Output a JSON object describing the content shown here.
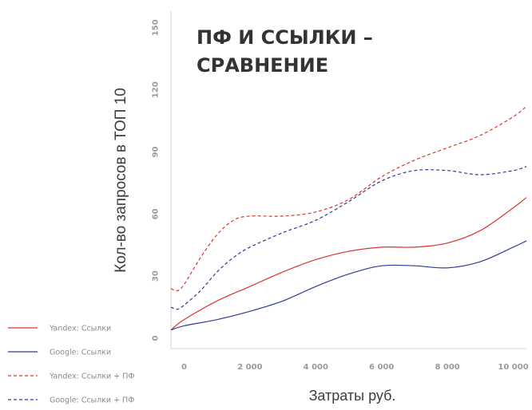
{
  "chart_data": {
    "type": "line",
    "title_lines": [
      "ПФ И ССЫЛКИ –",
      "СРАВНЕНИЕ"
    ],
    "xlabel": "Затраты руб.",
    "ylabel": "Кол-во запросов в ТОП 10",
    "xlim": [
      -400,
      10400
    ],
    "ylim": [
      -5,
      158
    ],
    "x_ticks": [
      0,
      2000,
      4000,
      6000,
      8000,
      10000
    ],
    "x_tick_labels": [
      "0",
      "2 000",
      "4 000",
      "6 000",
      "8 000",
      "10 000"
    ],
    "y_ticks": [
      0,
      30,
      60,
      90,
      120,
      150
    ],
    "y_tick_labels": [
      "0",
      "30",
      "60",
      "90",
      "120",
      "150"
    ],
    "grid": false,
    "legend_position": "bottom-left",
    "series": [
      {
        "name": "Yandex: Ссылки",
        "color": "#d9352b",
        "style": "solid",
        "x": [
          -400,
          0,
          1000,
          2000,
          3000,
          4000,
          5000,
          6000,
          7000,
          8000,
          9000,
          10000,
          10400
        ],
        "y": [
          4,
          9,
          18,
          25,
          32,
          38,
          42,
          44,
          44,
          46,
          52,
          63,
          68
        ]
      },
      {
        "name": "Google: Ссылки",
        "color": "#2f3b95",
        "style": "solid",
        "x": [
          -400,
          0,
          1000,
          2000,
          3000,
          4000,
          5000,
          6000,
          7000,
          8000,
          9000,
          10000,
          10400
        ],
        "y": [
          4,
          6,
          9,
          13,
          18,
          25,
          31,
          35,
          35,
          34,
          37,
          44,
          47
        ]
      },
      {
        "name": "Yandex: Ссылки + ПФ",
        "color": "#d9352b",
        "style": "dashed",
        "x": [
          -400,
          -200,
          0,
          500,
          1000,
          1500,
          2000,
          3000,
          4000,
          5000,
          6000,
          7000,
          8000,
          9000,
          10000,
          10400
        ],
        "y": [
          24,
          23,
          26,
          39,
          50,
          57,
          59,
          59,
          61,
          67,
          78,
          86,
          92,
          98,
          107,
          112
        ]
      },
      {
        "name": "Google: Ссылки + ПФ",
        "color": "#2f3b95",
        "style": "dashed",
        "x": [
          -400,
          -200,
          0,
          500,
          1000,
          1500,
          2000,
          3000,
          4000,
          5000,
          6000,
          7000,
          8000,
          9000,
          10000,
          10400
        ],
        "y": [
          15,
          14,
          16,
          23,
          32,
          39,
          44,
          51,
          57,
          66,
          76,
          81,
          81,
          79,
          81,
          83
        ]
      }
    ]
  }
}
